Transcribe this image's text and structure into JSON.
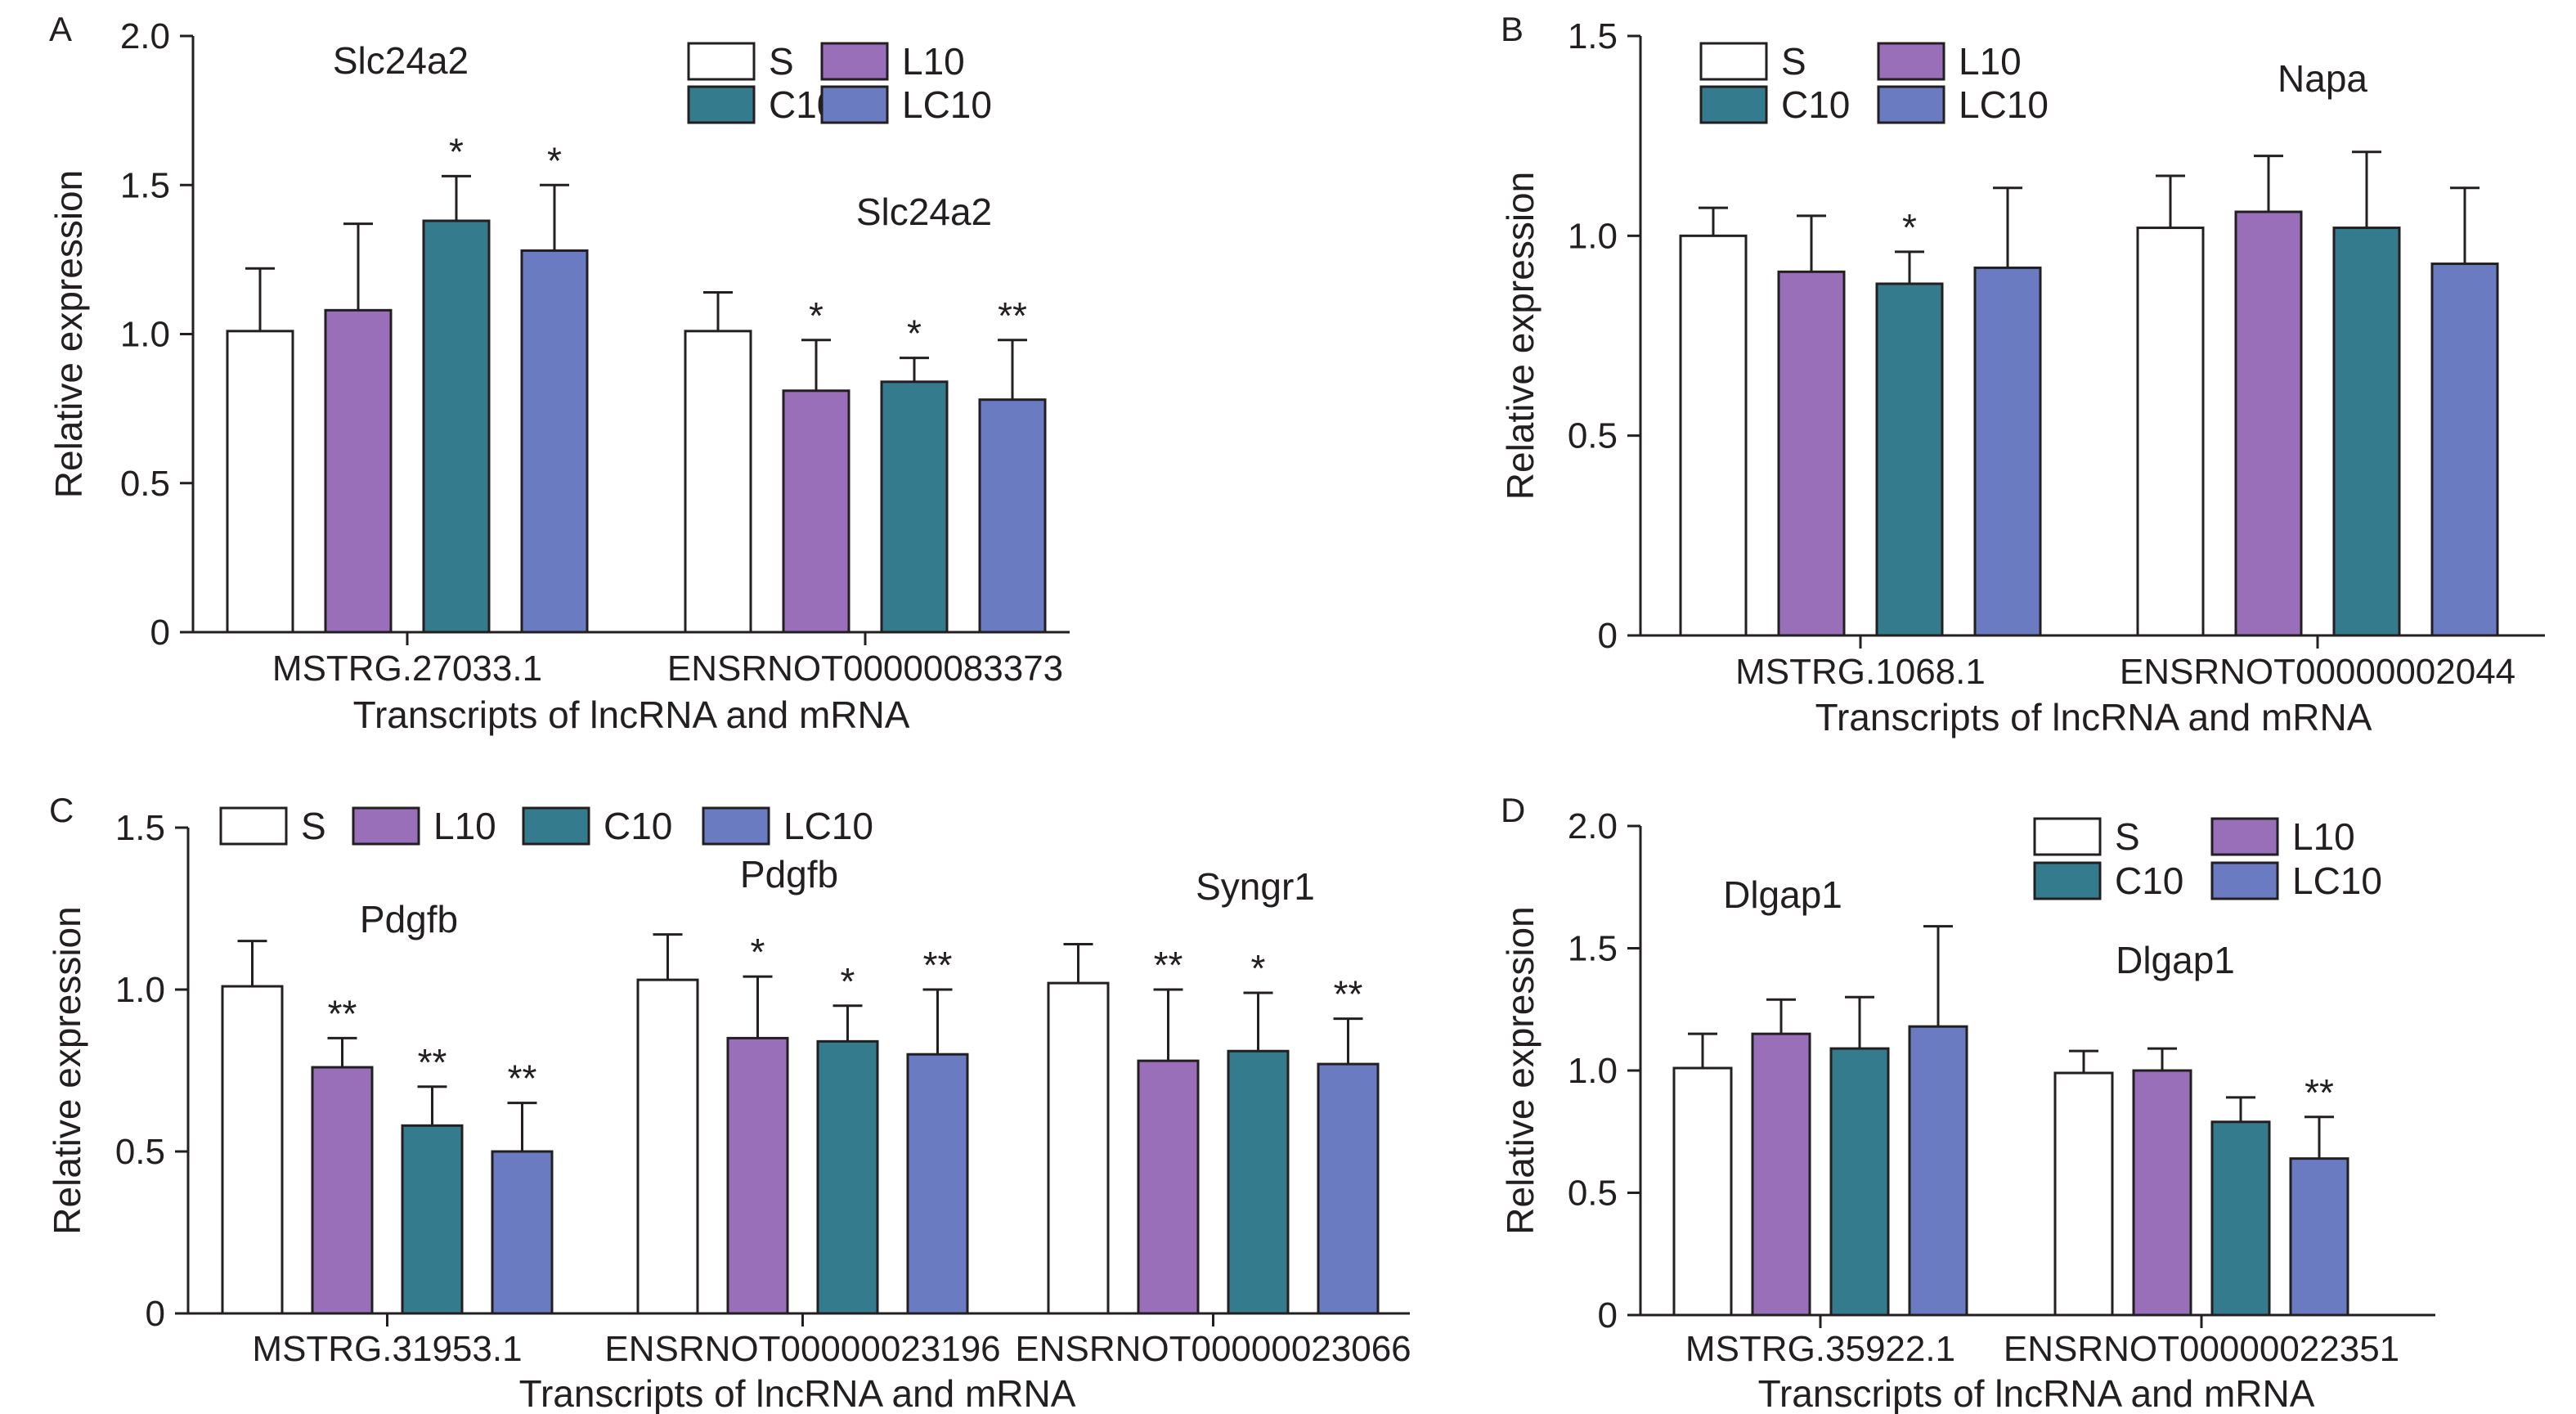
{
  "legend_labels": [
    "S",
    "L10",
    "C10",
    "LC10"
  ],
  "colors": {
    "S": "#ffffff",
    "L10": "#9a6fb9",
    "C10": "#357b8e",
    "LC10": "#6b7bc2",
    "stroke": "#231f20"
  },
  "chart_data": [
    {
      "panel": "A",
      "type": "bar",
      "ylabel": "Relative expression",
      "xlabel": "Transcripts of lncRNA and mRNA",
      "ylim": [
        0,
        2.0
      ],
      "yticks": [
        "0",
        "0.5",
        "1.0",
        "1.5",
        "2.0"
      ],
      "legend_position": "top-right",
      "categories": [
        "MSTRG.27033.1",
        "ENSRNOT00000083373"
      ],
      "gene_labels": [
        "Slc24a2",
        "Slc24a2"
      ],
      "series": [
        {
          "name": "S",
          "values": [
            1.01,
            1.01
          ],
          "errors": [
            0.21,
            0.13
          ],
          "sig": [
            "",
            ""
          ]
        },
        {
          "name": "L10",
          "values": [
            1.08,
            0.81
          ],
          "errors": [
            0.29,
            0.17
          ],
          "sig": [
            "",
            "*"
          ]
        },
        {
          "name": "C10",
          "values": [
            1.38,
            0.84
          ],
          "errors": [
            0.15,
            0.08
          ],
          "sig": [
            "*",
            "*"
          ]
        },
        {
          "name": "LC10",
          "values": [
            1.28,
            0.78
          ],
          "errors": [
            0.22,
            0.2
          ],
          "sig": [
            "*",
            "**"
          ]
        }
      ]
    },
    {
      "panel": "B",
      "type": "bar",
      "ylabel": "Relative expression",
      "xlabel": "Transcripts of lncRNA and mRNA",
      "ylim": [
        0,
        1.5
      ],
      "yticks": [
        "0",
        "0.5",
        "1.0",
        "1.5"
      ],
      "legend_position": "top-left",
      "categories": [
        "MSTRG.1068.1",
        "ENSRNOT00000002044"
      ],
      "gene_labels": [
        "",
        "Napa"
      ],
      "series": [
        {
          "name": "S",
          "values": [
            1.0,
            1.02
          ],
          "errors": [
            0.07,
            0.13
          ],
          "sig": [
            "",
            ""
          ]
        },
        {
          "name": "L10",
          "values": [
            0.91,
            1.06
          ],
          "errors": [
            0.14,
            0.14
          ],
          "sig": [
            "",
            ""
          ]
        },
        {
          "name": "C10",
          "values": [
            0.88,
            1.02
          ],
          "errors": [
            0.08,
            0.19
          ],
          "sig": [
            "*",
            ""
          ]
        },
        {
          "name": "LC10",
          "values": [
            0.92,
            0.93
          ],
          "errors": [
            0.2,
            0.19
          ],
          "sig": [
            "",
            ""
          ]
        }
      ]
    },
    {
      "panel": "C",
      "type": "bar",
      "ylabel": "Relative expression",
      "xlabel": "Transcripts of lncRNA and mRNA",
      "ylim": [
        0,
        1.5
      ],
      "yticks": [
        "0",
        "0.5",
        "1.0",
        "1.5"
      ],
      "legend_position": "top",
      "categories": [
        "MSTRG.31953.1",
        "ENSRNOT00000023196",
        "ENSRNOT00000023066"
      ],
      "gene_labels": [
        "Pdgfb",
        "Pdgfb",
        "Syngr1"
      ],
      "series": [
        {
          "name": "S",
          "values": [
            1.01,
            1.03,
            1.02
          ],
          "errors": [
            0.14,
            0.14,
            0.12
          ],
          "sig": [
            "",
            "",
            ""
          ]
        },
        {
          "name": "L10",
          "values": [
            0.76,
            0.85,
            0.78
          ],
          "errors": [
            0.09,
            0.19,
            0.22
          ],
          "sig": [
            "**",
            "*",
            "**"
          ]
        },
        {
          "name": "C10",
          "values": [
            0.58,
            0.84,
            0.81
          ],
          "errors": [
            0.12,
            0.11,
            0.18
          ],
          "sig": [
            "**",
            "*",
            "*"
          ]
        },
        {
          "name": "LC10",
          "values": [
            0.5,
            0.8,
            0.77
          ],
          "errors": [
            0.15,
            0.2,
            0.14
          ],
          "sig": [
            "**",
            "**",
            "**"
          ]
        }
      ]
    },
    {
      "panel": "D",
      "type": "bar",
      "ylabel": "Relative expression",
      "xlabel": "Transcripts of lncRNA and mRNA",
      "ylim": [
        0,
        2.0
      ],
      "yticks": [
        "0",
        "0.5",
        "1.0",
        "1.5",
        "2.0"
      ],
      "legend_position": "top-right",
      "categories": [
        "MSTRG.35922.1",
        "ENSRNOT00000022351"
      ],
      "gene_labels": [
        "Dlgap1",
        "Dlgap1"
      ],
      "series": [
        {
          "name": "S",
          "values": [
            1.01,
            0.99
          ],
          "errors": [
            0.14,
            0.09
          ],
          "sig": [
            "",
            ""
          ]
        },
        {
          "name": "L10",
          "values": [
            1.15,
            1.0
          ],
          "errors": [
            0.14,
            0.09
          ],
          "sig": [
            "",
            ""
          ]
        },
        {
          "name": "C10",
          "values": [
            1.09,
            0.79
          ],
          "errors": [
            0.21,
            0.1
          ],
          "sig": [
            "",
            ""
          ]
        },
        {
          "name": "LC10",
          "values": [
            1.18,
            0.64
          ],
          "errors": [
            0.41,
            0.17
          ],
          "sig": [
            "",
            "**"
          ]
        }
      ]
    }
  ]
}
